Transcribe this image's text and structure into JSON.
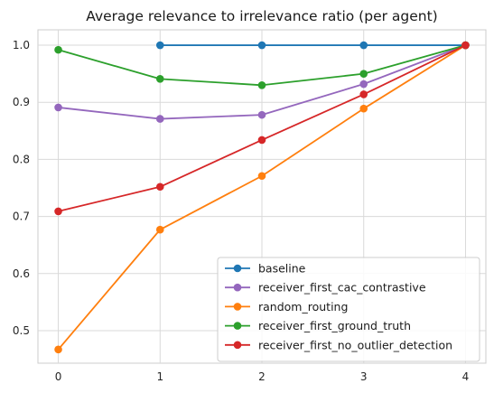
{
  "chart_data": {
    "type": "line",
    "title": "Average relevance to irrelevance ratio (per agent)",
    "xlabel": "",
    "ylabel": "",
    "x": [
      0,
      1,
      2,
      3,
      4
    ],
    "xticks": [
      "0",
      "1",
      "2",
      "3",
      "4"
    ],
    "yticks": [
      "0.5",
      "0.6",
      "0.7",
      "0.8",
      "0.9",
      "1.0"
    ],
    "xlim": [
      -0.2,
      4.2
    ],
    "ylim": [
      0.443,
      1.027
    ],
    "grid": true,
    "legend_position": "lower-right",
    "series": [
      {
        "name": "baseline",
        "color": "#1f77b4",
        "values": [
          null,
          1.0,
          1.0,
          1.0,
          1.0
        ]
      },
      {
        "name": "receiver_first_cac_contrastive",
        "color": "#9467bd",
        "values": [
          0.891,
          0.871,
          0.878,
          0.932,
          1.0
        ]
      },
      {
        "name": "random_routing",
        "color": "#ff7f0e",
        "values": [
          0.467,
          0.677,
          0.771,
          0.889,
          1.0
        ]
      },
      {
        "name": "receiver_first_ground_truth",
        "color": "#2ca02c",
        "values": [
          0.992,
          0.941,
          0.93,
          0.95,
          1.0
        ]
      },
      {
        "name": "receiver_first_no_outlier_detection",
        "color": "#d62728",
        "values": [
          0.709,
          0.752,
          0.834,
          0.914,
          1.0
        ]
      }
    ]
  }
}
